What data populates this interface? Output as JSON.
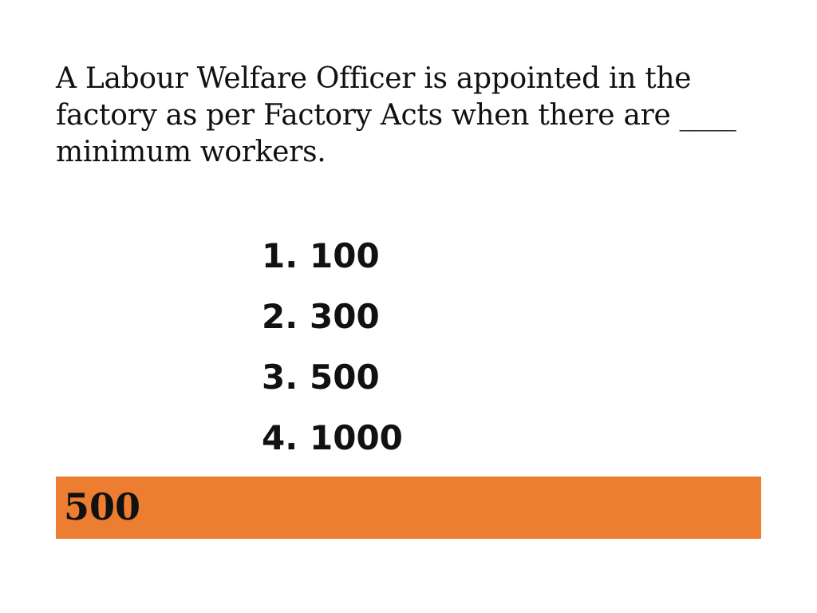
{
  "question": {
    "text": "A Labour Welfare Officer is appointed in the factory as per Factory Acts when there are ____ minimum workers."
  },
  "options": [
    {
      "number": "1.",
      "value": "100"
    },
    {
      "number": "2.",
      "value": "300"
    },
    {
      "number": "3.",
      "value": "500"
    },
    {
      "number": "4.",
      "value": "1000"
    }
  ],
  "answer": {
    "text": "500",
    "bar_color": "#ed7d31"
  }
}
